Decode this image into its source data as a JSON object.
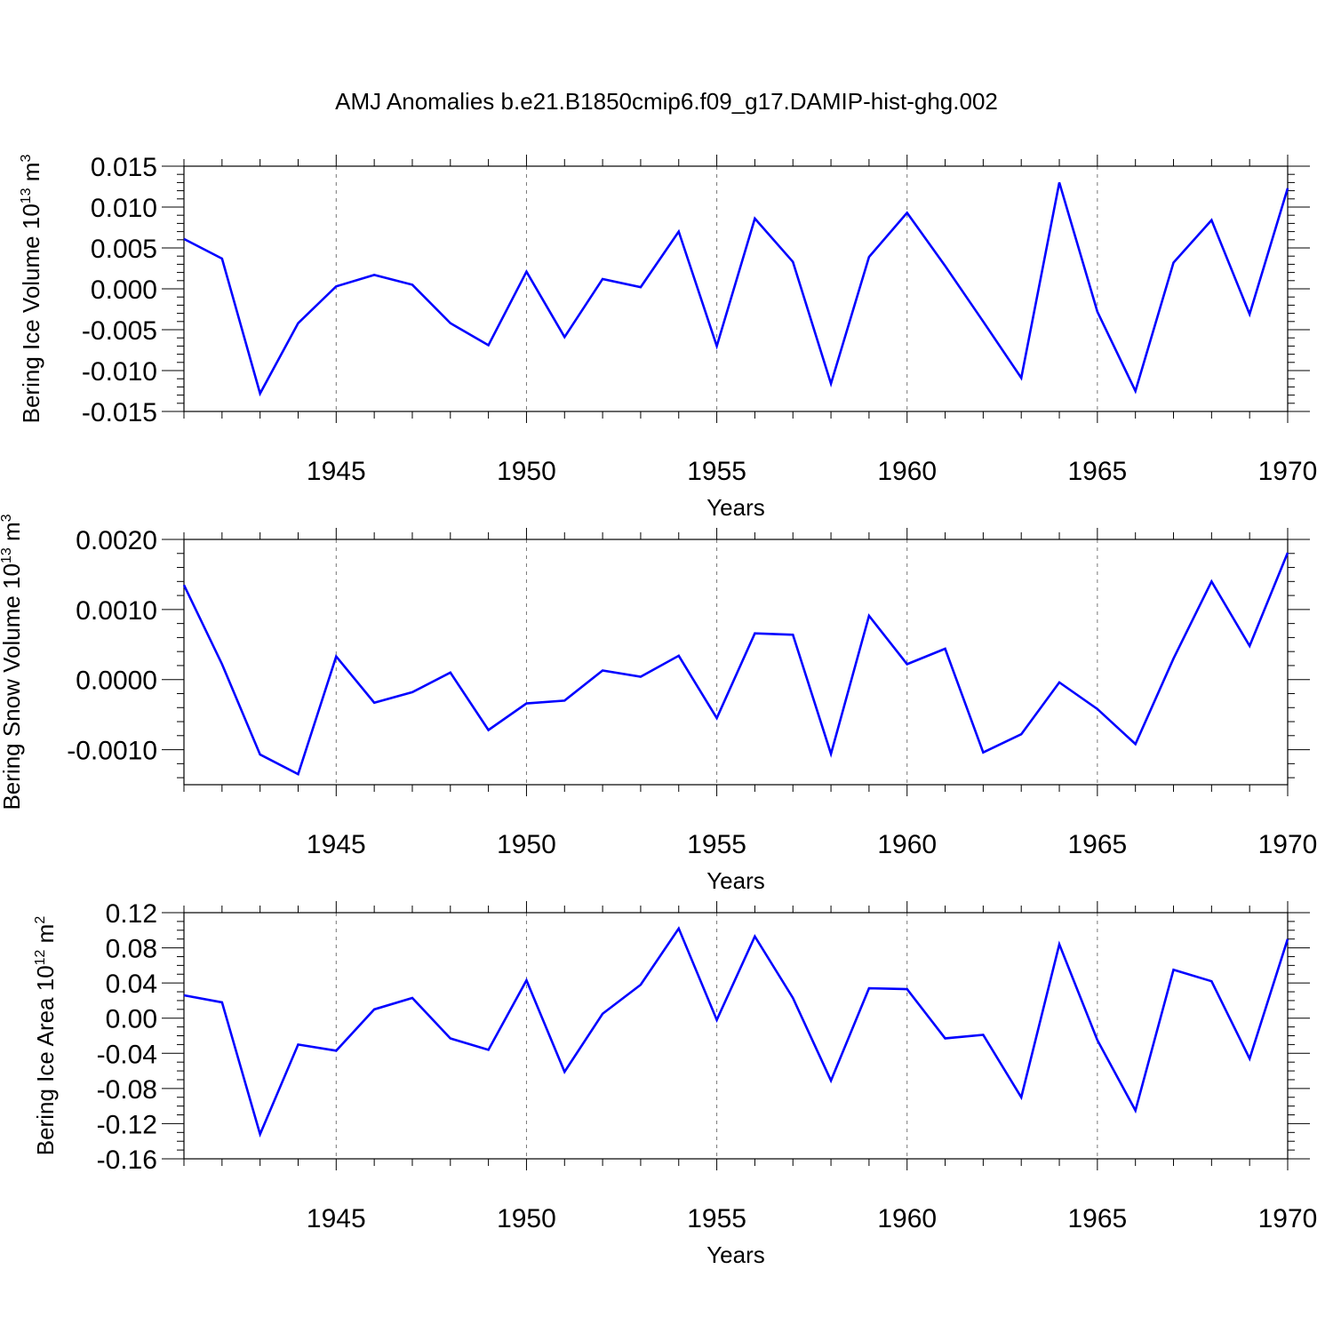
{
  "chart_data": {
    "title": "AMJ Anomalies b.e21.B1850cmip6.f09_g17.DAMIP-hist-ghg.002",
    "line_color": "#0000ff",
    "panels": [
      {
        "type": "line",
        "ylabel": "Bering Ice Volume 10",
        "ylabel_exp": "13",
        "ylabel_unit": " m",
        "ylabel_unit_exp": "3",
        "xlabel": "Years",
        "xlim": [
          1941,
          1970
        ],
        "ylim": [
          -0.015,
          0.015
        ],
        "yticks": [
          -0.015,
          -0.01,
          -0.005,
          0.0,
          0.005,
          0.01,
          0.015
        ],
        "ytick_labels": [
          "-0.015",
          "-0.010",
          "-0.005",
          "0.000",
          "0.005",
          "0.010",
          "0.015"
        ],
        "xticks": [
          1945,
          1950,
          1955,
          1960,
          1965,
          1970
        ],
        "xtick_labels": [
          "1945",
          "1950",
          "1955",
          "1960",
          "1965",
          "1970"
        ],
        "x": [
          1941,
          1942,
          1943,
          1944,
          1945,
          1946,
          1947,
          1948,
          1949,
          1950,
          1951,
          1952,
          1953,
          1954,
          1955,
          1956,
          1957,
          1958,
          1959,
          1960,
          1961,
          1962,
          1963,
          1964,
          1965,
          1966,
          1967,
          1968,
          1969,
          1970
        ],
        "series": [
          {
            "values": [
              0.0061,
              0.0037,
              -0.0128,
              -0.0042,
              0.0003,
              0.0017,
              0.0005,
              -0.0042,
              -0.0069,
              0.0021,
              -0.0059,
              0.0012,
              0.0002,
              0.007,
              -0.007,
              0.0086,
              0.0033,
              -0.0116,
              0.0039,
              0.0093,
              0.0028,
              -0.004,
              -0.0109,
              0.013,
              -0.0028,
              -0.0125,
              0.0032,
              0.0084,
              -0.0031,
              0.0123
            ]
          }
        ]
      },
      {
        "type": "line",
        "ylabel": "Bering Snow Volume 10",
        "ylabel_exp": "13",
        "ylabel_unit": " m",
        "ylabel_unit_exp": "3",
        "xlabel": "Years",
        "xlim": [
          1941,
          1970
        ],
        "ylim": [
          -0.0015,
          0.002
        ],
        "yticks": [
          -0.001,
          0.0,
          0.001,
          0.002
        ],
        "ytick_labels": [
          "-0.0010",
          "0.0000",
          "0.0010",
          "0.0020"
        ],
        "xticks": [
          1945,
          1950,
          1955,
          1960,
          1965,
          1970
        ],
        "xtick_labels": [
          "1945",
          "1950",
          "1955",
          "1960",
          "1965",
          "1970"
        ],
        "x": [
          1941,
          1942,
          1943,
          1944,
          1945,
          1946,
          1947,
          1948,
          1949,
          1950,
          1951,
          1952,
          1953,
          1954,
          1955,
          1956,
          1957,
          1958,
          1959,
          1960,
          1961,
          1962,
          1963,
          1964,
          1965,
          1966,
          1967,
          1968,
          1969,
          1970
        ],
        "series": [
          {
            "values": [
              0.00135,
              0.00022,
              -0.00107,
              -0.00135,
              0.00033,
              -0.00033,
              -0.00018,
              0.0001,
              -0.00072,
              -0.00034,
              -0.0003,
              0.00013,
              4e-05,
              0.00034,
              -0.00055,
              0.00066,
              0.00064,
              -0.00106,
              0.00091,
              0.00022,
              0.00044,
              -0.00104,
              -0.00078,
              -4e-05,
              -0.00042,
              -0.00092,
              0.0003,
              0.0014,
              0.00048,
              0.00181
            ]
          }
        ]
      },
      {
        "type": "line",
        "ylabel": "Bering Ice Area 10",
        "ylabel_exp": "12",
        "ylabel_unit": " m",
        "ylabel_unit_exp": "2",
        "xlabel": "Years",
        "xlim": [
          1941,
          1970
        ],
        "ylim": [
          -0.16,
          0.12
        ],
        "yticks": [
          -0.16,
          -0.12,
          -0.08,
          -0.04,
          0.0,
          0.04,
          0.08,
          0.12
        ],
        "ytick_labels": [
          "-0.16",
          "-0.12",
          "-0.08",
          "-0.04",
          "0.00",
          "0.04",
          "0.08",
          "0.12"
        ],
        "xticks": [
          1945,
          1950,
          1955,
          1960,
          1965,
          1970
        ],
        "xtick_labels": [
          "1945",
          "1950",
          "1955",
          "1960",
          "1965",
          "1970"
        ],
        "x": [
          1941,
          1942,
          1943,
          1944,
          1945,
          1946,
          1947,
          1948,
          1949,
          1950,
          1951,
          1952,
          1953,
          1954,
          1955,
          1956,
          1957,
          1958,
          1959,
          1960,
          1961,
          1962,
          1963,
          1964,
          1965,
          1966,
          1967,
          1968,
          1969,
          1970
        ],
        "series": [
          {
            "values": [
              0.026,
              0.018,
              -0.132,
              -0.03,
              -0.037,
              0.01,
              0.023,
              -0.023,
              -0.036,
              0.043,
              -0.061,
              0.005,
              0.038,
              0.102,
              -0.002,
              0.093,
              0.023,
              -0.071,
              0.034,
              0.033,
              -0.023,
              -0.019,
              -0.09,
              0.084,
              -0.025,
              -0.105,
              0.055,
              0.042,
              -0.046,
              0.09
            ]
          }
        ]
      }
    ]
  }
}
